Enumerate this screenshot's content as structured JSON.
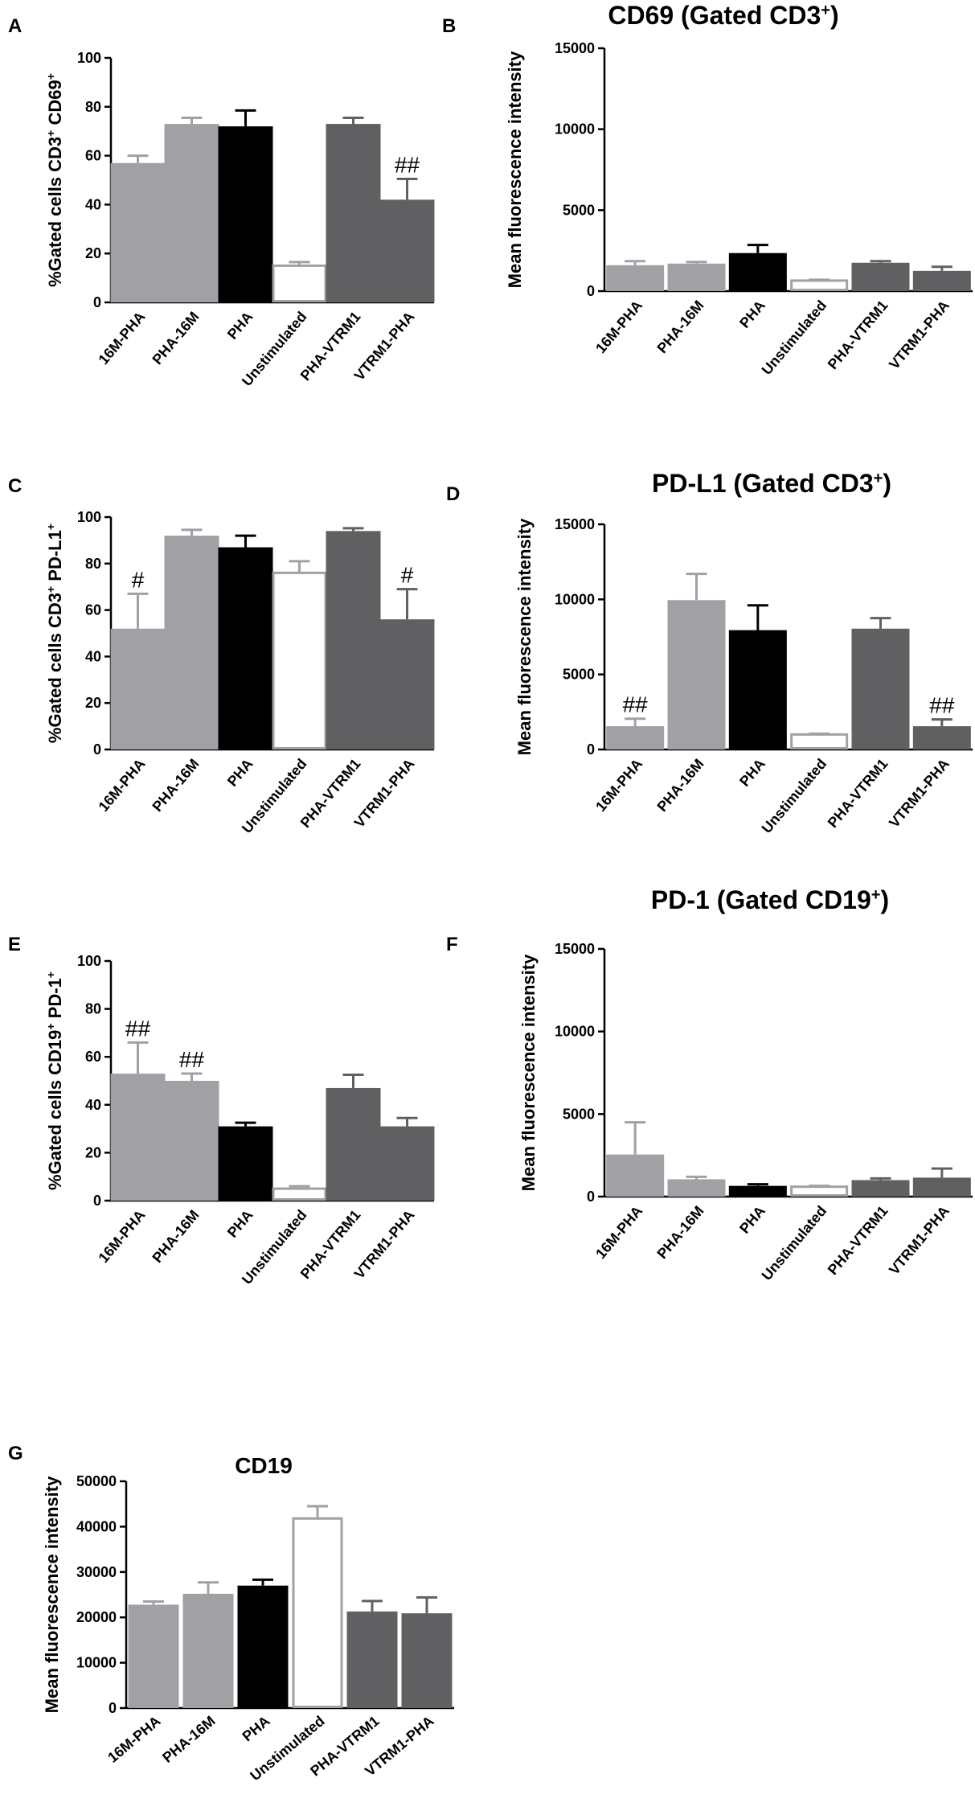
{
  "colors": {
    "light_gray": "#a1a1a5",
    "black": "#000000",
    "white": "#ffffff",
    "dark_gray": "#606062",
    "open_stroke": "#a1a1a5",
    "axis": "#000000"
  },
  "chart_data": [
    {
      "id": "A",
      "panel_label": "A",
      "type": "bar",
      "title": "",
      "title_sup": "",
      "title_end": "",
      "ylabel_main": "%Gated cells CD3",
      "ylabel_sup1": "+",
      "ylabel_mid": " CD69",
      "ylabel_sup2": "+",
      "ylim": [
        0,
        100
      ],
      "yticks": [
        0,
        20,
        40,
        60,
        80,
        100
      ],
      "ytick_labels": [
        "0",
        "20",
        "40",
        "60",
        "80",
        "100"
      ],
      "categories": [
        "16M-PHA",
        "PHA-16M",
        "PHA",
        "Unstimulated",
        "PHA-VTRM1",
        "VTRM1-PHA"
      ],
      "values": [
        57,
        73,
        72,
        15,
        73,
        42
      ],
      "errors": [
        3,
        2.5,
        6.5,
        1.5,
        2.5,
        8.5
      ],
      "annotations": [
        "",
        "",
        "",
        "",
        "",
        "##"
      ],
      "fills": [
        "light_gray",
        "light_gray",
        "black",
        "white",
        "dark_gray",
        "dark_gray"
      ]
    },
    {
      "id": "B",
      "panel_label": "B",
      "type": "bar",
      "title": "CD69 (Gated CD3",
      "title_sup": "+",
      "title_end": ")",
      "ylabel_main": "Mean fluorescence intensity",
      "ylabel_sup1": "",
      "ylabel_mid": "",
      "ylabel_sup2": "",
      "ylim": [
        0,
        15000
      ],
      "yticks": [
        0,
        5000,
        10000,
        15000
      ],
      "ytick_labels": [
        "0",
        "5000",
        "10000",
        "15000"
      ],
      "categories": [
        "16M-PHA",
        "PHA-16M",
        "PHA",
        "Unstimulated",
        "PHA-VTRM1",
        "VTRM1-PHA"
      ],
      "values": [
        1600,
        1700,
        2350,
        650,
        1750,
        1250
      ],
      "errors": [
        250,
        100,
        500,
        50,
        100,
        250
      ],
      "annotations": [
        "",
        "",
        "",
        "",
        "",
        ""
      ],
      "fills": [
        "light_gray",
        "light_gray",
        "black",
        "white",
        "dark_gray",
        "dark_gray"
      ]
    },
    {
      "id": "C",
      "panel_label": "C",
      "type": "bar",
      "title": "",
      "title_sup": "",
      "title_end": "",
      "ylabel_main": "%Gated cells CD3",
      "ylabel_sup1": "+",
      "ylabel_mid": " PD-L1",
      "ylabel_sup2": "+",
      "ylim": [
        0,
        100
      ],
      "yticks": [
        0,
        20,
        40,
        60,
        80,
        100
      ],
      "ytick_labels": [
        "0",
        "20",
        "40",
        "60",
        "80",
        "100"
      ],
      "categories": [
        "16M-PHA",
        "PHA-16M",
        "PHA",
        "Unstimulated",
        "PHA-VTRM1",
        "VTRM1-PHA"
      ],
      "values": [
        52,
        92,
        87,
        76,
        94,
        56
      ],
      "errors": [
        15,
        2.5,
        5,
        5,
        1.2,
        13
      ],
      "annotations": [
        "#",
        "",
        "",
        "",
        "",
        "#"
      ],
      "fills": [
        "light_gray",
        "light_gray",
        "black",
        "white",
        "dark_gray",
        "dark_gray"
      ]
    },
    {
      "id": "D",
      "panel_label": "D",
      "type": "bar",
      "title": "PD-L1 (Gated CD3",
      "title_sup": "+",
      "title_end": ")",
      "ylabel_main": "Mean fluorescence intensity",
      "ylabel_sup1": "",
      "ylabel_mid": "",
      "ylabel_sup2": "",
      "ylim": [
        0,
        15000
      ],
      "yticks": [
        0,
        5000,
        10000,
        15000
      ],
      "ytick_labels": [
        "0",
        "5000",
        "10000",
        "15000"
      ],
      "categories": [
        "16M-PHA",
        "PHA-16M",
        "PHA",
        "Unstimulated",
        "PHA-VTRM1",
        "VTRM1-PHA"
      ],
      "values": [
        1550,
        9950,
        7950,
        1000,
        8050,
        1550
      ],
      "errors": [
        500,
        1750,
        1650,
        50,
        700,
        450
      ],
      "annotations": [
        "##",
        "",
        "",
        "",
        "",
        "##"
      ],
      "fills": [
        "light_gray",
        "light_gray",
        "black",
        "white",
        "dark_gray",
        "dark_gray"
      ]
    },
    {
      "id": "E",
      "panel_label": "E",
      "type": "bar",
      "title": "",
      "title_sup": "",
      "title_end": "",
      "ylabel_main": "%Gated cells CD19",
      "ylabel_sup1": "+",
      "ylabel_mid": " PD-1",
      "ylabel_sup2": "+",
      "ylim": [
        0,
        100
      ],
      "yticks": [
        0,
        20,
        40,
        60,
        80,
        100
      ],
      "ytick_labels": [
        "0",
        "20",
        "40",
        "60",
        "80",
        "100"
      ],
      "categories": [
        "16M-PHA",
        "PHA-16M",
        "PHA",
        "Unstimulated",
        "PHA-VTRM1",
        "VTRM1-PHA"
      ],
      "values": [
        53,
        50,
        31,
        5,
        47,
        31
      ],
      "errors": [
        13,
        3,
        1.5,
        1,
        5.5,
        3.5
      ],
      "annotations": [
        "##",
        "##",
        "",
        "",
        "",
        ""
      ],
      "fills": [
        "light_gray",
        "light_gray",
        "black",
        "white",
        "dark_gray",
        "dark_gray"
      ]
    },
    {
      "id": "F",
      "panel_label": "F",
      "type": "bar",
      "title": "PD-1 (Gated CD19",
      "title_sup": "+",
      "title_end": ")",
      "ylabel_main": "Mean fluorescence intensity",
      "ylabel_sup1": "",
      "ylabel_mid": "",
      "ylabel_sup2": "",
      "ylim": [
        0,
        15000
      ],
      "yticks": [
        0,
        5000,
        10000,
        15000
      ],
      "ytick_labels": [
        "0",
        "5000",
        "10000",
        "15000"
      ],
      "categories": [
        "16M-PHA",
        "PHA-16M",
        "PHA",
        "Unstimulated",
        "PHA-VTRM1",
        "VTRM1-PHA"
      ],
      "values": [
        2550,
        1050,
        650,
        600,
        1000,
        1150
      ],
      "errors": [
        1950,
        150,
        100,
        50,
        100,
        550
      ],
      "annotations": [
        "",
        "",
        "",
        "",
        "",
        ""
      ],
      "fills": [
        "light_gray",
        "light_gray",
        "black",
        "white",
        "dark_gray",
        "dark_gray"
      ]
    },
    {
      "id": "G",
      "panel_label": "G",
      "type": "bar",
      "title": "CD19",
      "title_sup": "",
      "title_end": "",
      "ylabel_main": "Mean fluorescence intensity",
      "ylabel_sup1": "",
      "ylabel_mid": "",
      "ylabel_sup2": "",
      "ylim": [
        0,
        50000
      ],
      "yticks": [
        0,
        10000,
        20000,
        30000,
        40000,
        50000
      ],
      "ytick_labels": [
        "0",
        "10000",
        "20000",
        "30000",
        "40000",
        "50000"
      ],
      "categories": [
        "16M-PHA",
        "PHA-16M",
        "PHA",
        "Unstimulated",
        "PHA-VTRM1",
        "VTRM1-PHA"
      ],
      "values": [
        22800,
        25200,
        27000,
        41800,
        21300,
        20900
      ],
      "errors": [
        700,
        2500,
        1300,
        2700,
        2300,
        3500
      ],
      "annotations": [
        "",
        "",
        "",
        "",
        "",
        ""
      ],
      "fills": [
        "light_gray",
        "light_gray",
        "black",
        "white",
        "dark_gray",
        "dark_gray"
      ]
    }
  ]
}
